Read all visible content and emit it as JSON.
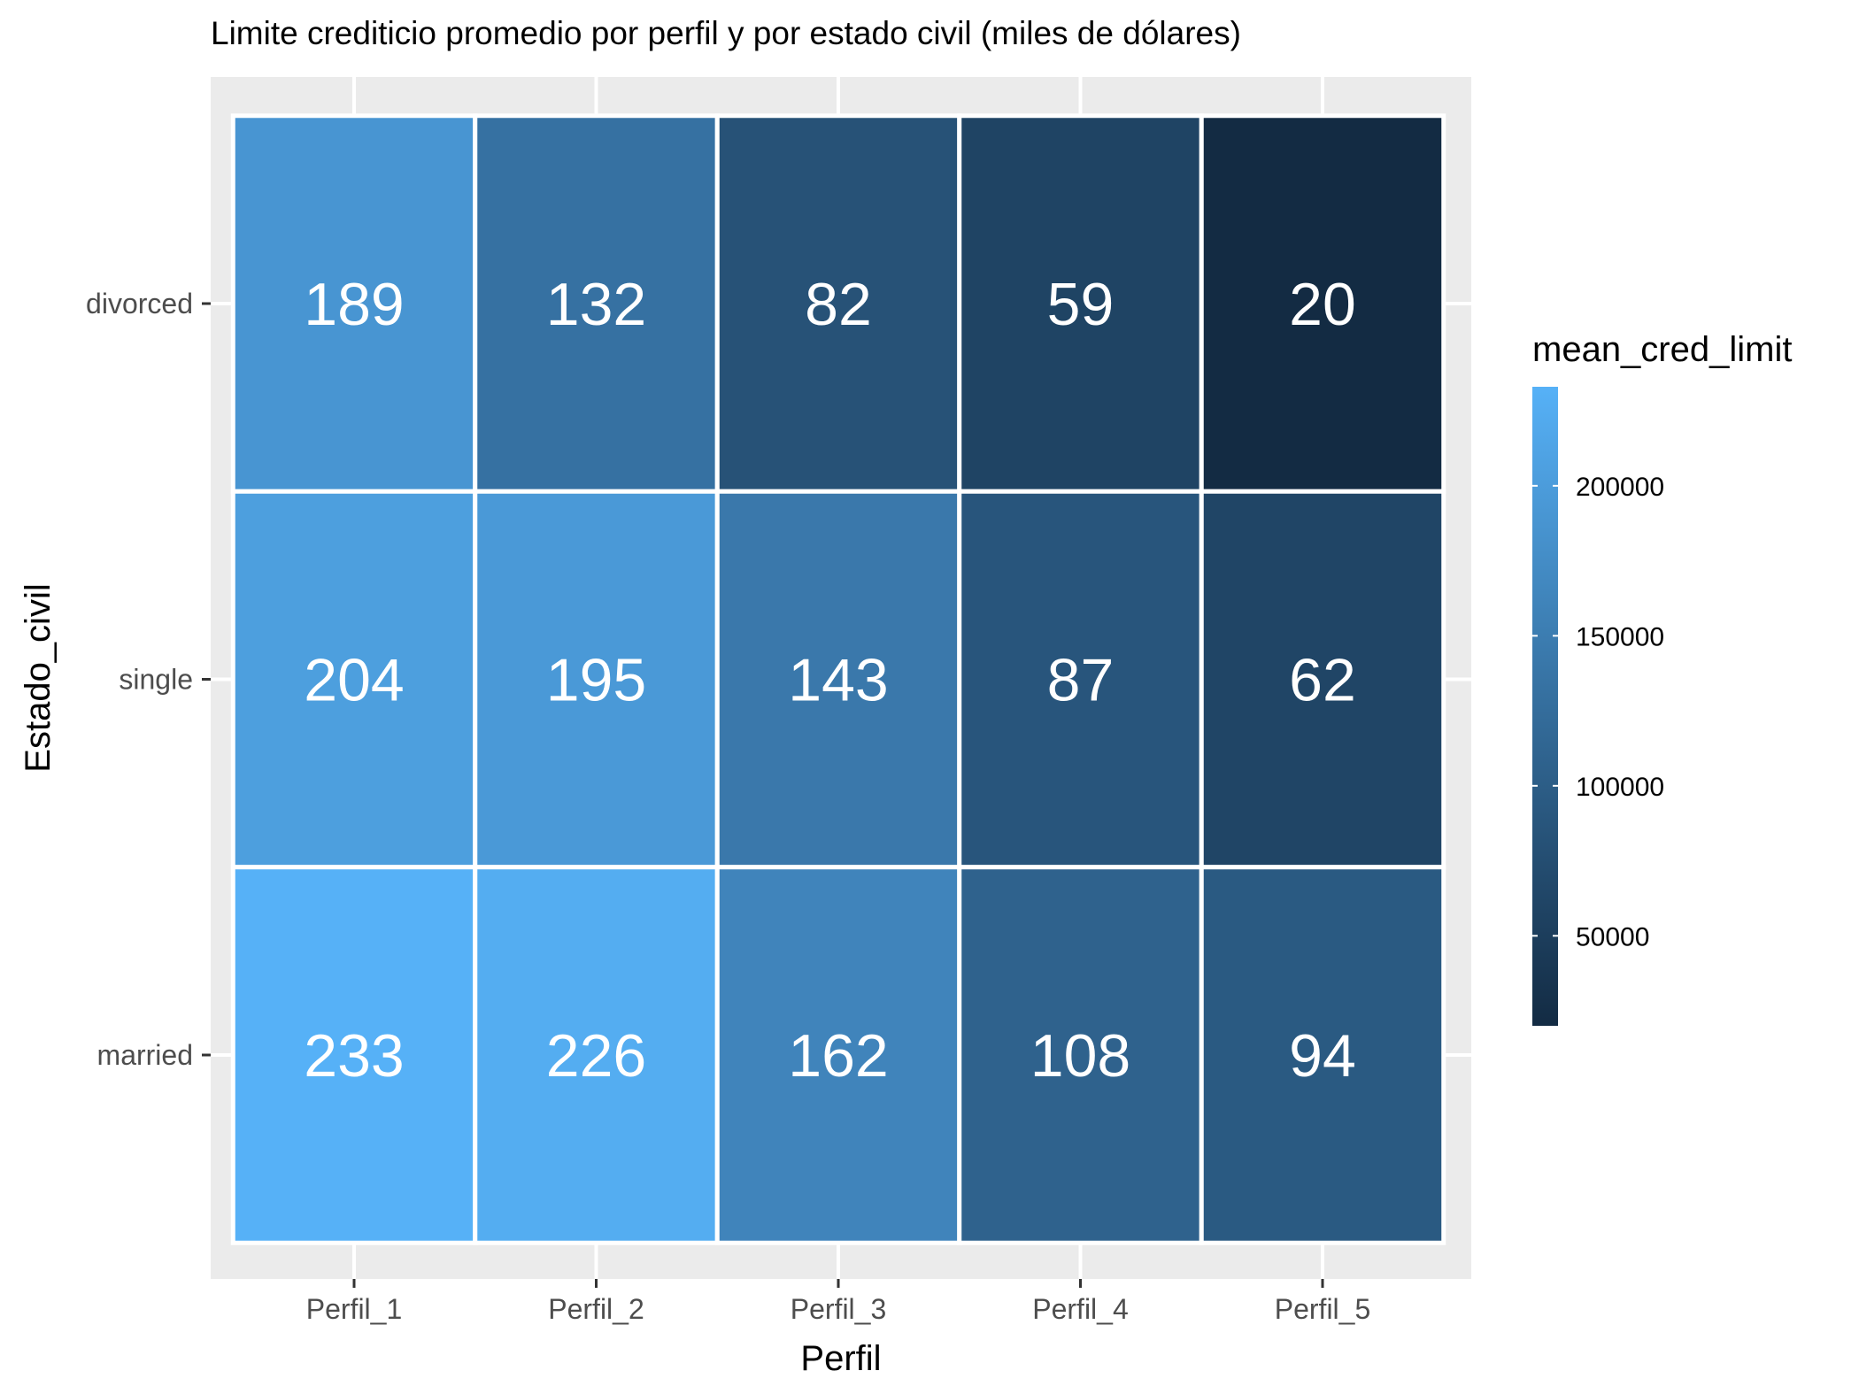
{
  "chart_data": {
    "type": "heatmap",
    "title": "Limite crediticio promedio por perfil y por estado civil (miles de dólares)",
    "xlabel": "Perfil",
    "ylabel": "Estado_civil",
    "x_categories": [
      "Perfil_1",
      "Perfil_2",
      "Perfil_3",
      "Perfil_4",
      "Perfil_5"
    ],
    "y_categories": [
      "divorced",
      "single",
      "married"
    ],
    "cell_labels": [
      [
        "189",
        "132",
        "82",
        "59",
        "20"
      ],
      [
        "204",
        "195",
        "143",
        "87",
        "62"
      ],
      [
        "233",
        "226",
        "162",
        "108",
        "94"
      ]
    ],
    "values": [
      [
        189000,
        132000,
        82000,
        59000,
        20000
      ],
      [
        204000,
        195000,
        143000,
        87000,
        62000
      ],
      [
        233000,
        226000,
        162000,
        108000,
        94000
      ]
    ],
    "legend": {
      "title": "mean_cred_limit",
      "ticks": [
        200000,
        150000,
        100000,
        50000
      ],
      "tick_labels": [
        "200000",
        "150000",
        "100000",
        "50000"
      ],
      "min": 20000,
      "max": 233000,
      "low_color": "#132B43",
      "high_color": "#56B1F7",
      "placement": "right"
    },
    "panel_background": "#ebebeb",
    "grid": true
  }
}
